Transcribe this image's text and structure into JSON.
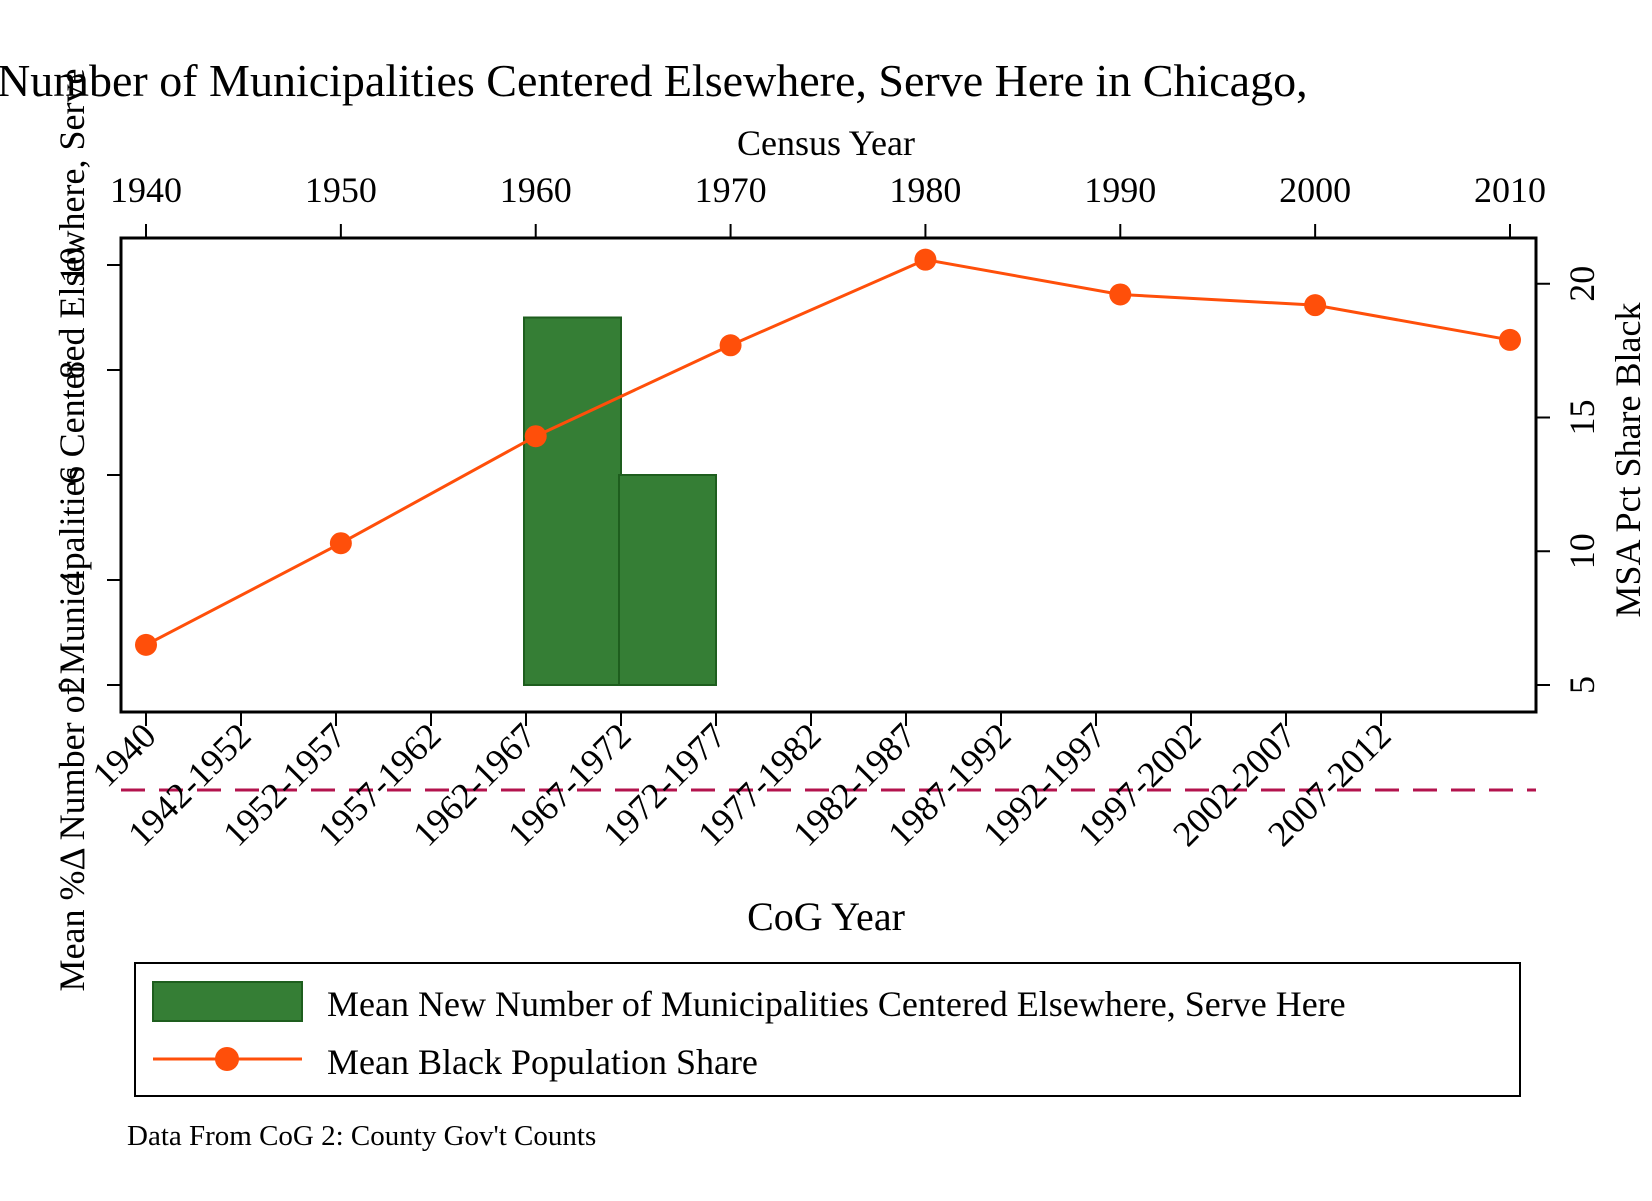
{
  "chart_data": {
    "type": "bar",
    "title": "Number of Municipalities Centered Elsewhere, Serve Here in Chicago,",
    "ylabel": "Mean %Δ Number of Municipalities Centered Elsewhere, Serve",
    "ylabel_right": "MSA Pct Share Black",
    "xlabel_bottom": "CoG Year",
    "xlabel_top": "Census Year",
    "left_axis": {
      "ticks": [
        2,
        4,
        6,
        8,
        10
      ],
      "range": [
        2,
        10
      ]
    },
    "right_axis": {
      "ticks": [
        5,
        10,
        15,
        20
      ],
      "range": [
        5,
        21
      ]
    },
    "top_axis": {
      "ticks": [
        1940,
        1950,
        1960,
        1970,
        1980,
        1990,
        2000,
        2010
      ]
    },
    "categories": [
      "1940",
      "1942-1952",
      "1952-1957",
      "1957-1962",
      "1962-1967",
      "1967-1972",
      "1972-1977",
      "1977-1982",
      "1982-1987",
      "1987-1992",
      "1992-1997",
      "1997-2002",
      "2002-2007",
      "2007-2012"
    ],
    "series": [
      {
        "name": "Mean New Number of Municipalities Centered Elsewhere, Serve Here",
        "type": "bar",
        "axis": "left",
        "bars": [
          {
            "from": "1962-1967",
            "to": "1967-1972",
            "value": 9
          },
          {
            "from": "1967-1972",
            "to": "1972-1977",
            "value": 6
          }
        ],
        "color": "#357e35"
      },
      {
        "name": "Mean Black Population Share",
        "type": "line",
        "axis": "right",
        "x": [
          1940,
          1950,
          1960,
          1970,
          1980,
          1990,
          2000,
          2010
        ],
        "values": [
          6.5,
          10.3,
          14.3,
          17.7,
          20.9,
          19.6,
          19.2,
          17.9
        ],
        "color": "#ff4f0a"
      }
    ],
    "reference_line": {
      "axis": "left",
      "value": 0,
      "style": "dashed",
      "color": "#b3134d"
    },
    "legend_position": "bottom",
    "grid": false,
    "note": "Data From CoG 2: County Gov't Counts"
  },
  "colors": {
    "bar_fill": "#357e35",
    "bar_edge": "#1e5e1e",
    "line": "#ff4f0a",
    "reference": "#b3134d"
  }
}
